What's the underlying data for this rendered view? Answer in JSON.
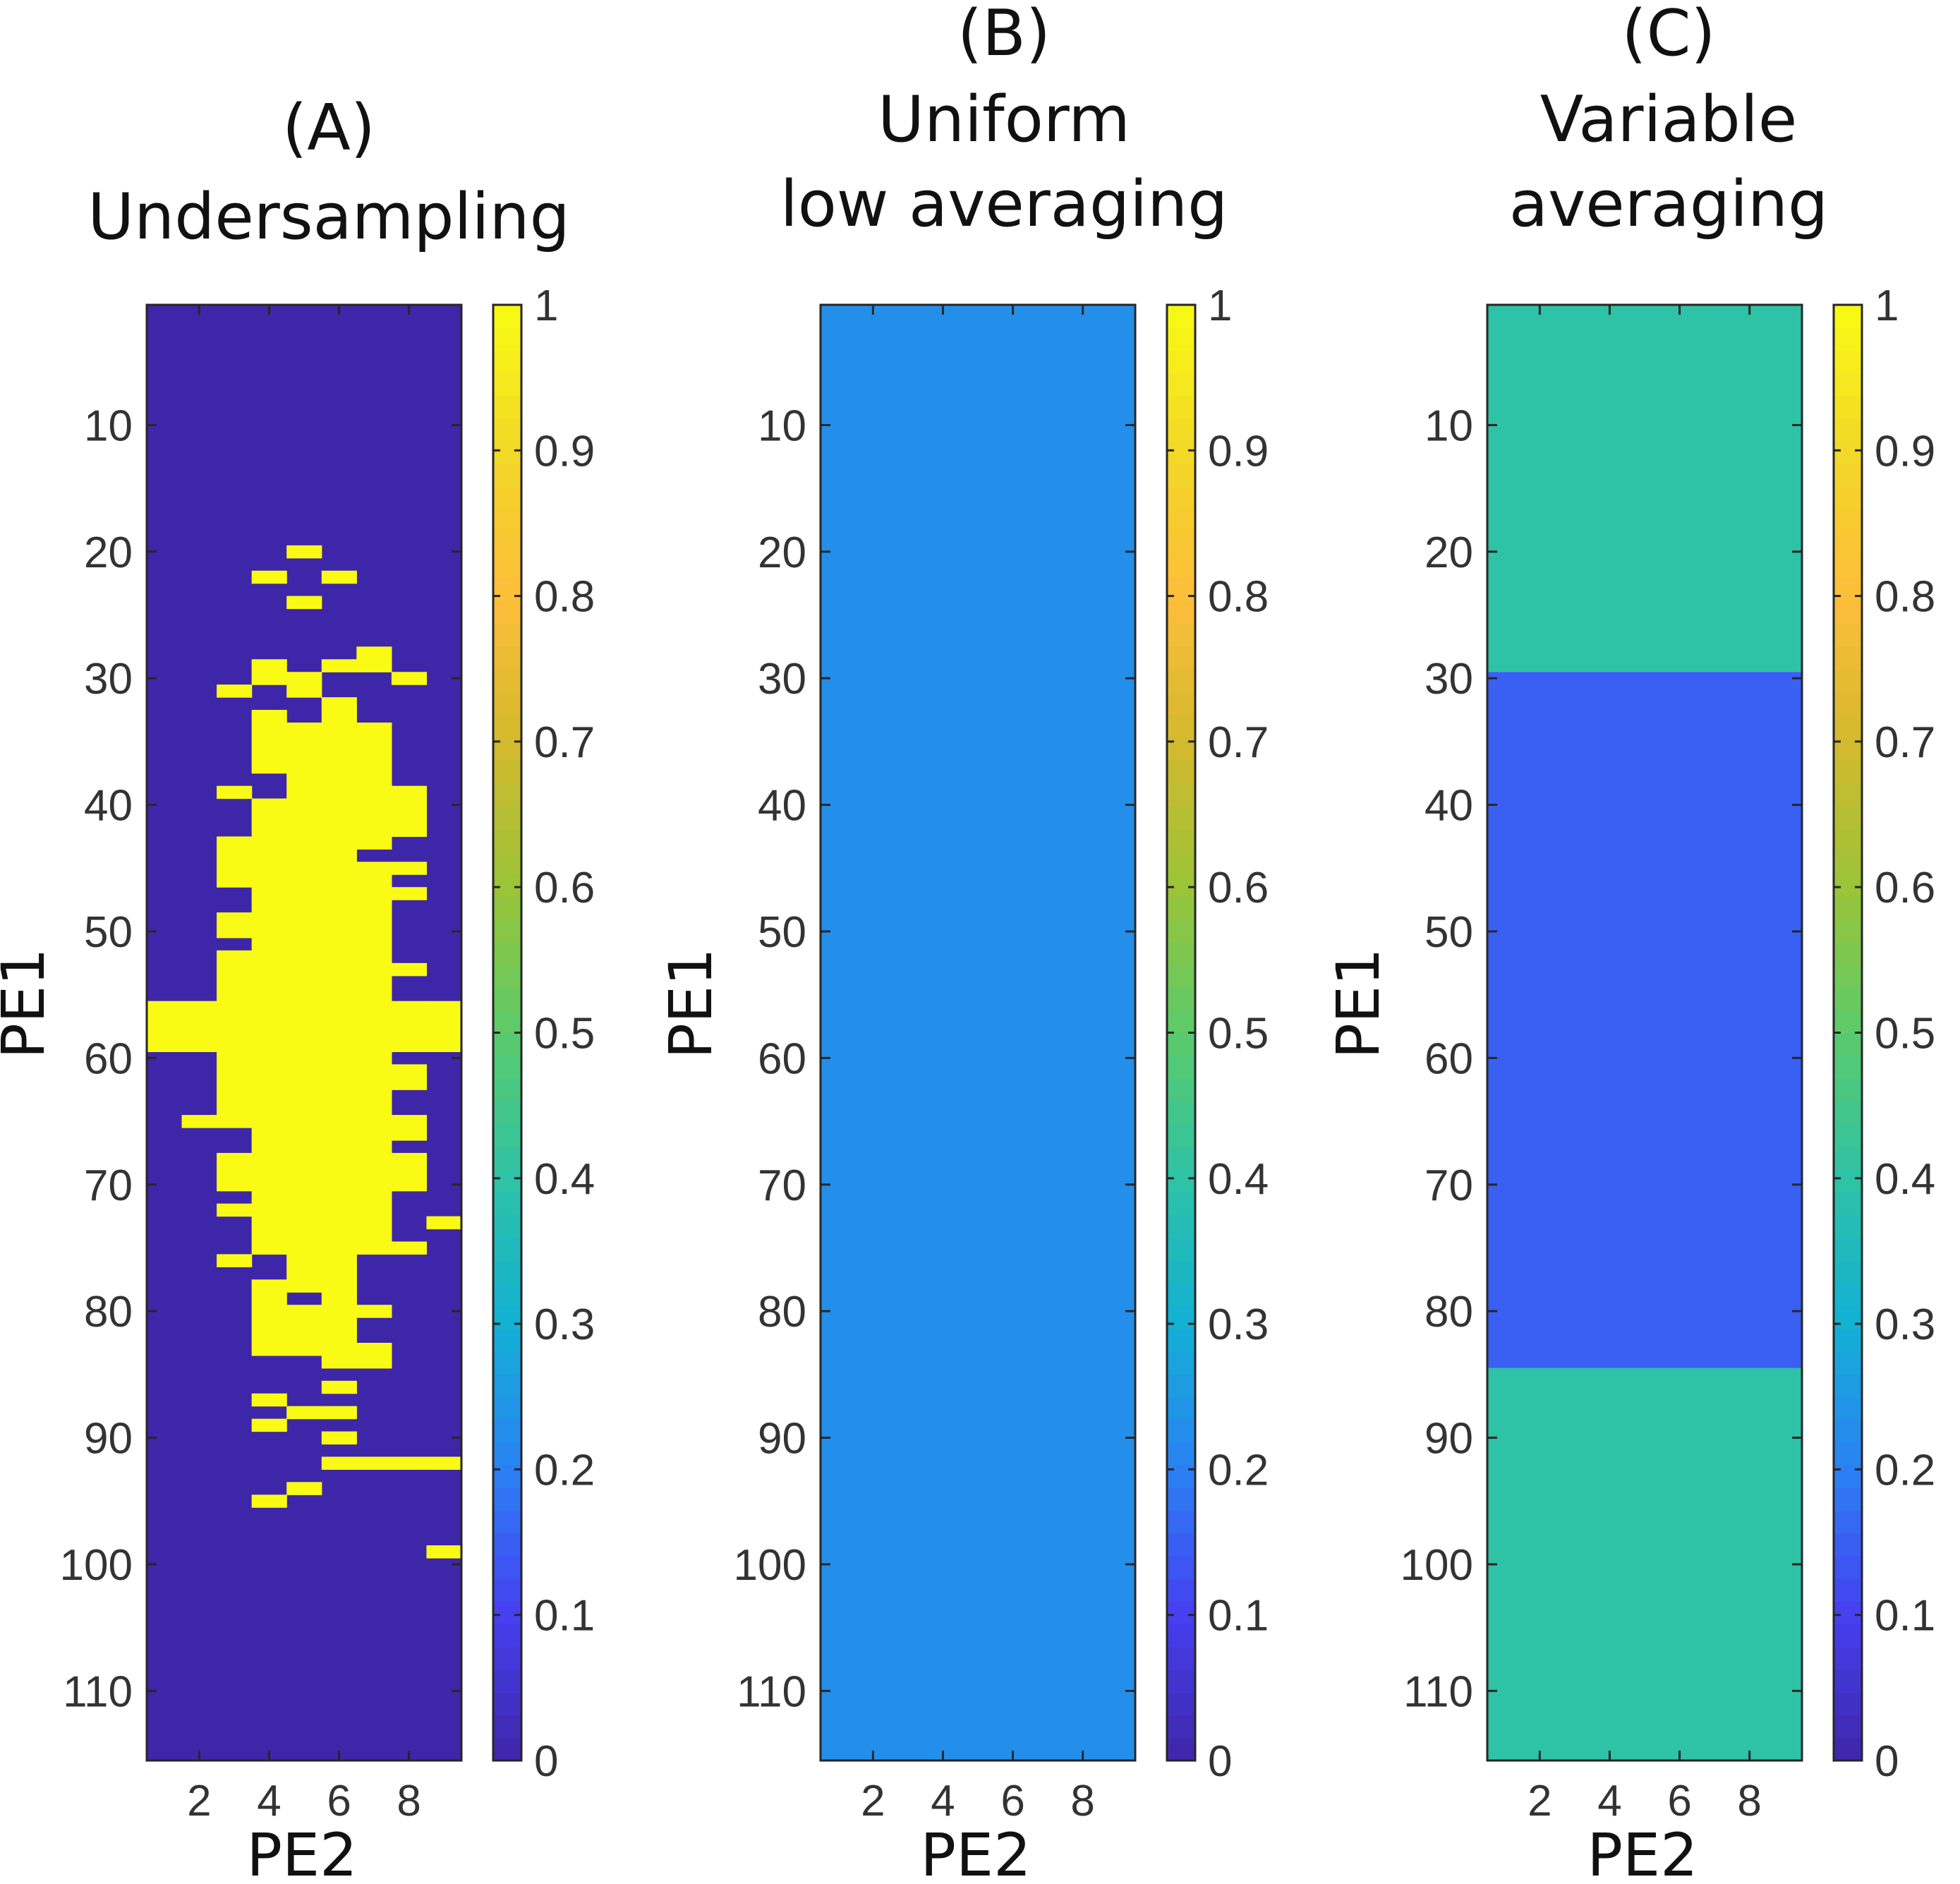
{
  "chart_data": [
    {
      "type": "heatmap",
      "title": [
        "(A)",
        "Undersampling"
      ],
      "xlabel": "PE2",
      "ylabel": "PE1",
      "x_range": [
        0.5,
        9.5
      ],
      "y_range": [
        0.5,
        115.5
      ],
      "y_reversed": true,
      "xticks": [
        2,
        4,
        6,
        8
      ],
      "yticks": [
        10,
        20,
        30,
        40,
        50,
        60,
        70,
        80,
        90,
        100,
        110
      ],
      "colorbar": {
        "min": 0,
        "max": 1,
        "ticks": [
          "0",
          "0.1",
          "0.2",
          "0.3",
          "0.4",
          "0.5",
          "0.6",
          "0.7",
          "0.8",
          "0.9",
          "1"
        ]
      },
      "background_value": 0,
      "sampled_value": 1,
      "sampled_rows": [
        {
          "row": 20,
          "cols": [
            5
          ]
        },
        {
          "row": 22,
          "cols": [
            4,
            6
          ]
        },
        {
          "row": 24,
          "cols": [
            5
          ]
        },
        {
          "row": 28,
          "cols": [
            7
          ]
        },
        {
          "row": 29,
          "cols": [
            4,
            6,
            7
          ]
        },
        {
          "row": 30,
          "cols": [
            4,
            5,
            8
          ]
        },
        {
          "row": 31,
          "cols": [
            3,
            5
          ]
        },
        {
          "row": 32,
          "cols": [
            6
          ]
        },
        {
          "row": 33,
          "cols": [
            4,
            6
          ]
        },
        {
          "row": 34,
          "cols": [
            4,
            5,
            6,
            7
          ]
        },
        {
          "row": 35,
          "cols": [
            4,
            5,
            6,
            7
          ]
        },
        {
          "row": 36,
          "cols": [
            4,
            5,
            6,
            7
          ]
        },
        {
          "row": 37,
          "cols": [
            4,
            5,
            6,
            7
          ]
        },
        {
          "row": 38,
          "cols": [
            5,
            6,
            7
          ]
        },
        {
          "row": 39,
          "cols": [
            3,
            5,
            6,
            7,
            8
          ]
        },
        {
          "row": 40,
          "cols": [
            4,
            5,
            6,
            7,
            8
          ]
        },
        {
          "row": 41,
          "cols": [
            4,
            5,
            6,
            7,
            8
          ]
        },
        {
          "row": 42,
          "cols": [
            4,
            5,
            6,
            7,
            8
          ]
        },
        {
          "row": 43,
          "cols": [
            3,
            4,
            5,
            6,
            7
          ]
        },
        {
          "row": 44,
          "cols": [
            3,
            4,
            5,
            6
          ]
        },
        {
          "row": 45,
          "cols": [
            3,
            4,
            5,
            6,
            7,
            8
          ]
        },
        {
          "row": 46,
          "cols": [
            3,
            4,
            5,
            6,
            7
          ]
        },
        {
          "row": 47,
          "cols": [
            4,
            5,
            6,
            7,
            8
          ]
        },
        {
          "row": 48,
          "cols": [
            4,
            5,
            6,
            7
          ]
        },
        {
          "row": 49,
          "cols": [
            3,
            4,
            5,
            6,
            7
          ]
        },
        {
          "row": 50,
          "cols": [
            3,
            4,
            5,
            6,
            7
          ]
        },
        {
          "row": 51,
          "cols": [
            4,
            5,
            6,
            7
          ]
        },
        {
          "row": 52,
          "cols": [
            3,
            4,
            5,
            6,
            7
          ]
        },
        {
          "row": 53,
          "cols": [
            3,
            4,
            5,
            6,
            7,
            8
          ]
        },
        {
          "row": 54,
          "cols": [
            3,
            4,
            5,
            6,
            7
          ]
        },
        {
          "row": 55,
          "cols": [
            3,
            4,
            5,
            6,
            7
          ]
        },
        {
          "row": 56,
          "cols": [
            1,
            2,
            3,
            4,
            5,
            6,
            7,
            8,
            9
          ]
        },
        {
          "row": 57,
          "cols": [
            1,
            2,
            3,
            4,
            5,
            6,
            7,
            8,
            9
          ]
        },
        {
          "row": 58,
          "cols": [
            1,
            2,
            3,
            4,
            5,
            6,
            7,
            8,
            9
          ]
        },
        {
          "row": 59,
          "cols": [
            1,
            2,
            3,
            4,
            5,
            6,
            7,
            8,
            9
          ]
        },
        {
          "row": 60,
          "cols": [
            3,
            4,
            5,
            6,
            7
          ]
        },
        {
          "row": 61,
          "cols": [
            3,
            4,
            5,
            6,
            7,
            8
          ]
        },
        {
          "row": 62,
          "cols": [
            3,
            4,
            5,
            6,
            7,
            8
          ]
        },
        {
          "row": 63,
          "cols": [
            3,
            4,
            5,
            6,
            7
          ]
        },
        {
          "row": 64,
          "cols": [
            3,
            4,
            5,
            6,
            7
          ]
        },
        {
          "row": 65,
          "cols": [
            2,
            3,
            4,
            5,
            6,
            7,
            8
          ]
        },
        {
          "row": 66,
          "cols": [
            4,
            5,
            6,
            7,
            8
          ]
        },
        {
          "row": 67,
          "cols": [
            4,
            5,
            6,
            7
          ]
        },
        {
          "row": 68,
          "cols": [
            3,
            4,
            5,
            6,
            7,
            8
          ]
        },
        {
          "row": 69,
          "cols": [
            3,
            4,
            5,
            6,
            7,
            8
          ]
        },
        {
          "row": 70,
          "cols": [
            3,
            4,
            5,
            6,
            7,
            8
          ]
        },
        {
          "row": 71,
          "cols": [
            4,
            5,
            6,
            7
          ]
        },
        {
          "row": 72,
          "cols": [
            3,
            4,
            5,
            6,
            7
          ]
        },
        {
          "row": 73,
          "cols": [
            4,
            5,
            6,
            7,
            9
          ]
        },
        {
          "row": 74,
          "cols": [
            4,
            5,
            6,
            7
          ]
        },
        {
          "row": 75,
          "cols": [
            4,
            5,
            6,
            7,
            8
          ]
        },
        {
          "row": 76,
          "cols": [
            3,
            5,
            6
          ]
        },
        {
          "row": 77,
          "cols": [
            5,
            6
          ]
        },
        {
          "row": 78,
          "cols": [
            4,
            5,
            6
          ]
        },
        {
          "row": 79,
          "cols": [
            4,
            6
          ]
        },
        {
          "row": 80,
          "cols": [
            4,
            5,
            6,
            7
          ]
        },
        {
          "row": 81,
          "cols": [
            4,
            5,
            6
          ]
        },
        {
          "row": 82,
          "cols": [
            4,
            5,
            6
          ]
        },
        {
          "row": 83,
          "cols": [
            4,
            5,
            6,
            7
          ]
        },
        {
          "row": 84,
          "cols": [
            6,
            7
          ]
        },
        {
          "row": 86,
          "cols": [
            6
          ]
        },
        {
          "row": 87,
          "cols": [
            4
          ]
        },
        {
          "row": 88,
          "cols": [
            5,
            6
          ]
        },
        {
          "row": 89,
          "cols": [
            4
          ]
        },
        {
          "row": 90,
          "cols": [
            6
          ]
        },
        {
          "row": 92,
          "cols": [
            6,
            7,
            8,
            9
          ]
        },
        {
          "row": 94,
          "cols": [
            5
          ]
        },
        {
          "row": 95,
          "cols": [
            4
          ]
        },
        {
          "row": 99,
          "cols": [
            9
          ]
        }
      ]
    },
    {
      "type": "heatmap",
      "title": [
        "(B)",
        "Uniform",
        "low averaging"
      ],
      "xlabel": "PE2",
      "ylabel": "PE1",
      "x_range": [
        0.5,
        9.5
      ],
      "y_range": [
        0.5,
        115.5
      ],
      "y_reversed": true,
      "xticks": [
        2,
        4,
        6,
        8
      ],
      "yticks": [
        10,
        20,
        30,
        40,
        50,
        60,
        70,
        80,
        90,
        100,
        110
      ],
      "colorbar": {
        "min": 0,
        "max": 1,
        "ticks": [
          "0",
          "0.1",
          "0.2",
          "0.3",
          "0.4",
          "0.5",
          "0.6",
          "0.7",
          "0.8",
          "0.9",
          "1"
        ]
      },
      "bands": [
        {
          "row_from": 1,
          "row_to": 115,
          "value": 0.23
        }
      ]
    },
    {
      "type": "heatmap",
      "title": [
        "(C)",
        "Variable",
        "averaging"
      ],
      "xlabel": "PE2",
      "ylabel": "PE1",
      "x_range": [
        0.5,
        9.5
      ],
      "y_range": [
        0.5,
        115.5
      ],
      "y_reversed": true,
      "xticks": [
        2,
        4,
        6,
        8
      ],
      "yticks": [
        10,
        20,
        30,
        40,
        50,
        60,
        70,
        80,
        90,
        100,
        110
      ],
      "colorbar": {
        "min": 0,
        "max": 1,
        "ticks": [
          "0",
          "0.1",
          "0.2",
          "0.3",
          "0.4",
          "0.5",
          "0.6",
          "0.7",
          "0.8",
          "0.9",
          "1"
        ]
      },
      "bands": [
        {
          "row_from": 1,
          "row_to": 29,
          "value": 0.4
        },
        {
          "row_from": 30,
          "row_to": 84,
          "value": 0.15
        },
        {
          "row_from": 85,
          "row_to": 115,
          "value": 0.4
        }
      ]
    }
  ]
}
